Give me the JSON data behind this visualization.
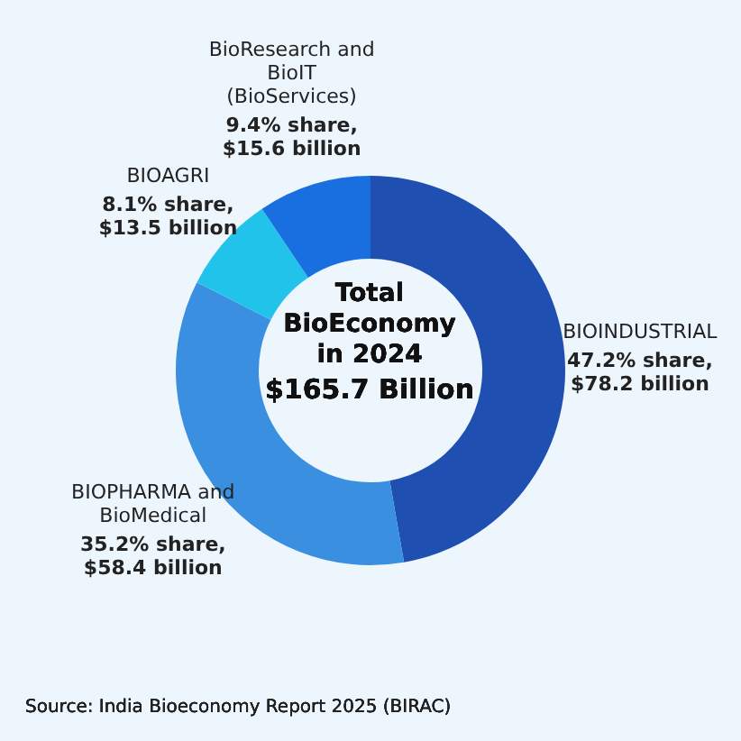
{
  "chart_data": {
    "type": "donut",
    "categories": [
      "BIOINDUSTRIAL",
      "BIOPHARMA and BioMedical",
      "BIOAGRI",
      "BioResearch and BioIT (BioServices)"
    ],
    "values": [
      47.2,
      35.2,
      8.1,
      9.4
    ],
    "colors": [
      "#1f4fb0",
      "#3a8fe0",
      "#22c3ea",
      "#1a6fe0"
    ],
    "value_labels": [
      "47.2% share, $78.2 billion",
      "35.2% share, $58.4 billion",
      "8.1% share, $13.5 billion",
      "9.4% share, $15.6 billion"
    ],
    "annotations": [
      "Total BioEconomy in 2024",
      "$165.7 Billion",
      "Source: India Bioeconomy Report 2025 (BIRAC)"
    ]
  }
}
